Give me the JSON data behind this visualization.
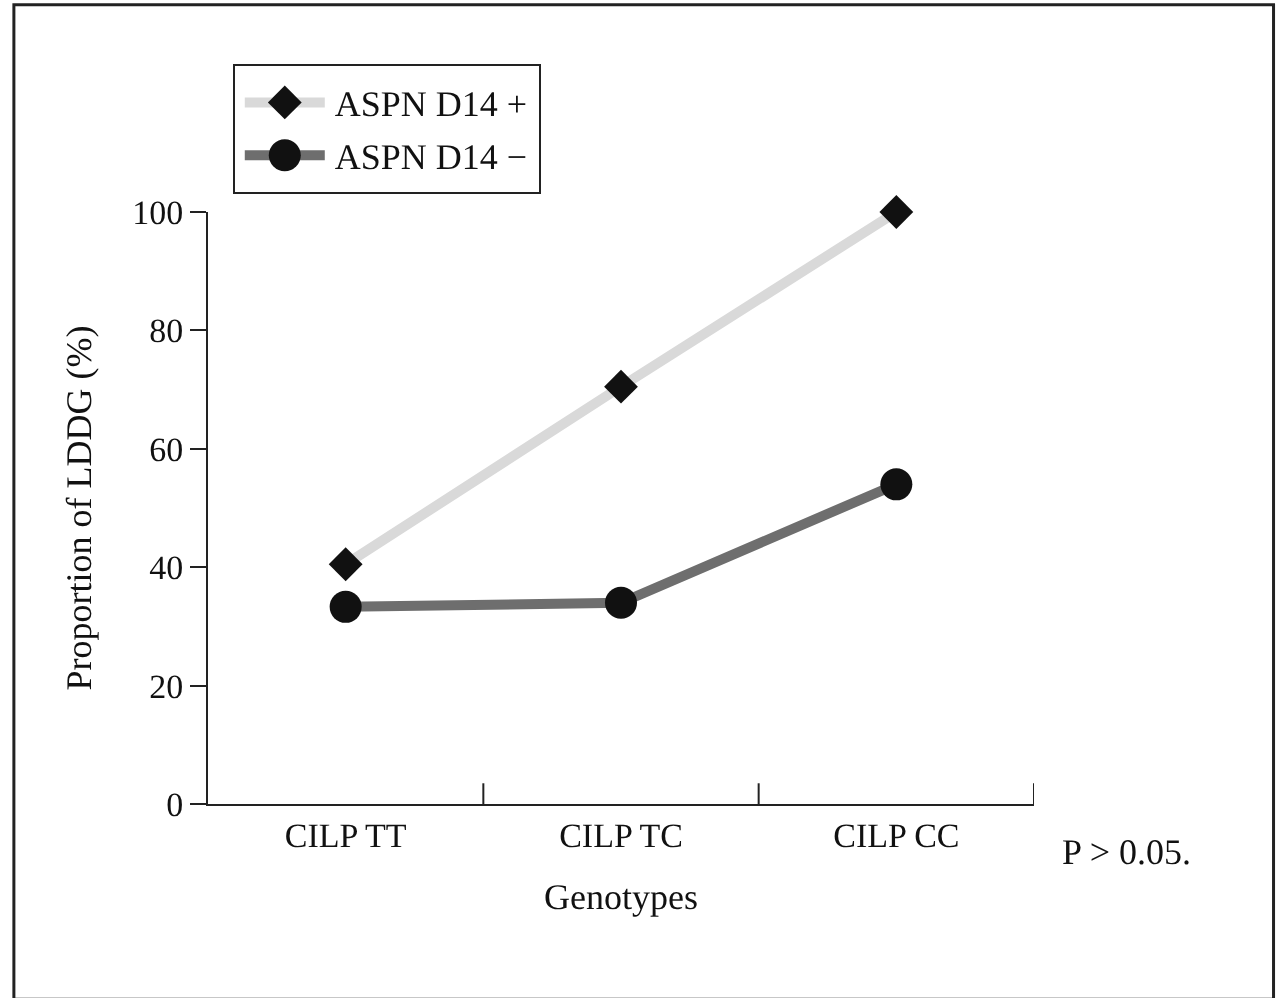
{
  "chart_data": {
    "type": "line",
    "xlabel": "Genotypes",
    "ylabel": "Proportion of LDDG (%)",
    "categories": [
      "CILP TT",
      "CILP TC",
      "CILP CC"
    ],
    "series": [
      {
        "name": "ASPN D14 +",
        "color": "#d9d9d9",
        "marker": "diamond",
        "values": [
          40.5,
          70.5,
          100
        ]
      },
      {
        "name": "ASPN D14 −",
        "color": "#6e6e6e",
        "marker": "circle",
        "values": [
          33.3,
          34,
          54
        ]
      }
    ],
    "ylim": [
      0,
      100
    ],
    "yticks": [
      0,
      20,
      40,
      60,
      80,
      100
    ],
    "legend": "top left",
    "annotations": [
      "P > 0.05."
    ]
  }
}
